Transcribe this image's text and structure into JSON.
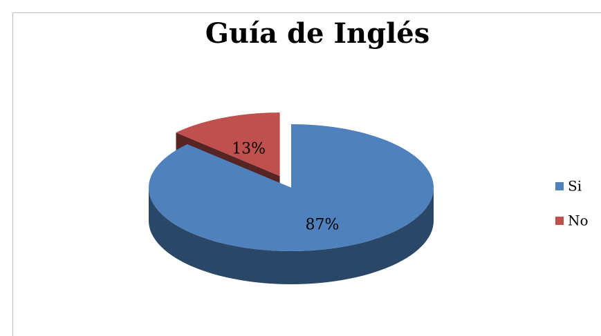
{
  "chart_data": {
    "type": "pie3d",
    "title": "Guía de Inglés",
    "categories": [
      "Si",
      "No"
    ],
    "values": [
      87,
      13
    ],
    "value_labels": [
      "87%",
      "13%"
    ],
    "colors": [
      "#4f81bd",
      "#c0504d"
    ],
    "exploded": [
      false,
      true
    ],
    "legend": "right"
  }
}
